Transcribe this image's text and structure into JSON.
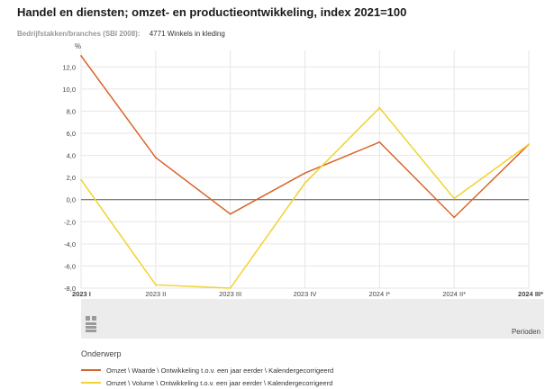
{
  "header": {
    "title": "Handel en diensten; omzet- en productieontwikkeling, index 2021=100",
    "filter_label": "Bedrijfstakken/branches (SBI 2008):",
    "filter_value": "4771 Winkels in kleding"
  },
  "footer": {
    "periods_label": "Perioden",
    "logo_icon": "cbs-logo-icon"
  },
  "legend": {
    "title": "Onderwerp"
  },
  "chart_data": {
    "type": "line",
    "ylabel": "%",
    "ylim": [
      -8,
      13
    ],
    "yticks": [
      12,
      10,
      8,
      6,
      4,
      2,
      0,
      -2,
      -4,
      -6,
      -8
    ],
    "ytick_labels": [
      "12,0",
      "10,0",
      "8,0",
      "6,0",
      "4,0",
      "2,0",
      "0,0",
      "-2,0",
      "-4,0",
      "-6,0",
      "-8,0"
    ],
    "categories": [
      "2023 I",
      "2023 II",
      "2023 III",
      "2023 IV",
      "2024 I*",
      "2024 II*",
      "2024 III*"
    ],
    "grid": true,
    "series": [
      {
        "name": "Omzet \\ Waarde \\ Ontwikkeling t.o.v. een jaar eerder \\ Kalendergecorrigeerd",
        "color": "#d9642a",
        "values": [
          13.0,
          3.8,
          -1.3,
          2.4,
          5.2,
          -1.6,
          5.0
        ]
      },
      {
        "name": "Omzet \\ Volume \\ Ontwikkeling t.o.v. een jaar eerder \\ Kalendergecorrigeerd",
        "color": "#f2d22e",
        "values": [
          1.8,
          -7.7,
          -8.0,
          1.5,
          8.3,
          0.1,
          5.0
        ]
      }
    ]
  }
}
